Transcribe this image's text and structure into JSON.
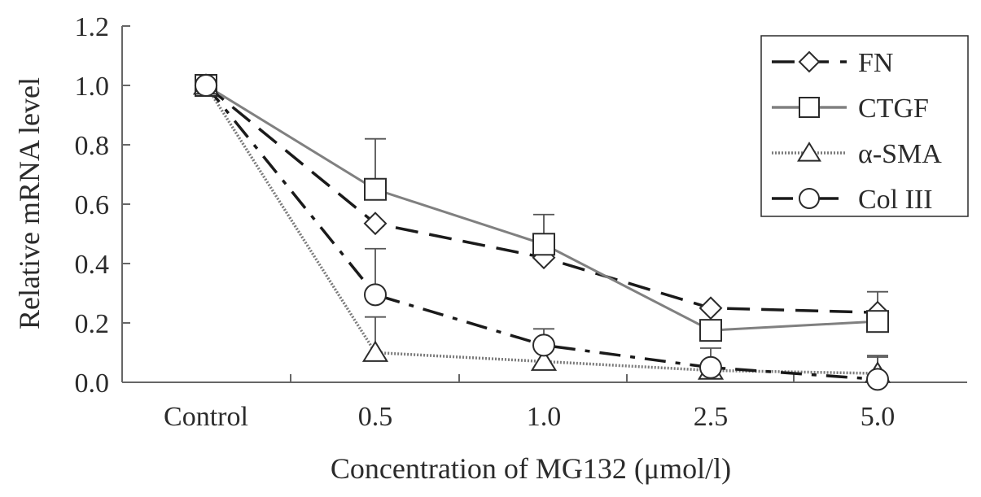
{
  "chart_data": {
    "type": "line",
    "xlabel": "Concentration of MG132 (μmol/l)",
    "ylabel": "Relative mRNA level",
    "categories": [
      "Control",
      "0.5",
      "1.0",
      "2.5",
      "5.0"
    ],
    "ylim": [
      0,
      1.2
    ],
    "yticks": [
      "0.0",
      "0.2",
      "0.4",
      "0.6",
      "0.8",
      "1.0",
      "1.2"
    ],
    "grid": false,
    "legend_position": "top-right",
    "series": [
      {
        "name": "FN",
        "marker": "diamond",
        "line_style": "dashed",
        "color": "#1a1a1a",
        "values": [
          1.0,
          0.535,
          0.42,
          0.25,
          0.235
        ],
        "errors": [
          0,
          0,
          0,
          0,
          0
        ]
      },
      {
        "name": "CTGF",
        "marker": "square",
        "line_style": "solid",
        "color": "#808080",
        "values": [
          1.0,
          0.65,
          0.465,
          0.175,
          0.205
        ],
        "errors": [
          0,
          0.17,
          0.1,
          0,
          0.1
        ]
      },
      {
        "name": "α-SMA",
        "marker": "triangle",
        "line_style": "dotted",
        "color": "#7a7a7a",
        "values": [
          1.0,
          0.1,
          0.07,
          0.04,
          0.03
        ],
        "errors": [
          0,
          0.12,
          0,
          0,
          0.06
        ]
      },
      {
        "name": "Col III",
        "marker": "circle",
        "line_style": "dash-dot",
        "color": "#1a1a1a",
        "values": [
          1.0,
          0.295,
          0.125,
          0.05,
          0.01
        ],
        "errors": [
          0,
          0.155,
          0.055,
          0.065,
          0.075
        ]
      }
    ]
  }
}
